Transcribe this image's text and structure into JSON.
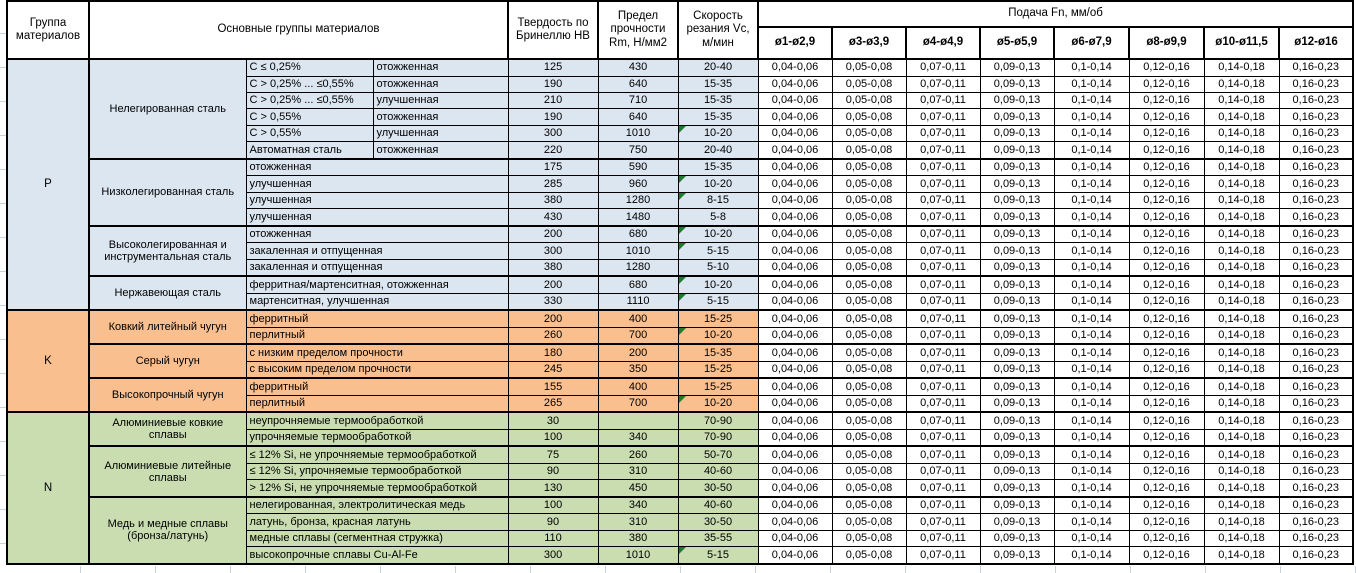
{
  "header": {
    "group": "Группа материалов",
    "main_groups": "Основные группы материалов",
    "hardness": "Твердость по Бринеллю HB",
    "strength": "Предел прочности Rm, Н/мм2",
    "speed": "Скорость резания Vc, м/мин",
    "feed": "Подача Fn, мм/об",
    "diameters": [
      "ø1-ø2,9",
      "ø3-ø3,9",
      "ø4-ø4,9",
      "ø5-ø5,9",
      "ø6-ø7,9",
      "ø8-ø9,9",
      "ø10-ø11,5",
      "ø12-ø16"
    ]
  },
  "feed_values": [
    "0,04-0,06",
    "0,05-0,08",
    "0,07-0,11",
    "0,09-0,13",
    "0,1-0,14",
    "0,12-0,16",
    "0,14-0,18",
    "0,16-0,23"
  ],
  "colors": {
    "group_P": "#DCE6F1",
    "group_K": "#FABF8F",
    "group_N": "#C9DDB1",
    "error_flag": "#1e7a2d",
    "border": "#000000",
    "gridline": "#c9d1de"
  },
  "groups": [
    {
      "code": "P",
      "color": "#DCE6F1",
      "subgroups": [
        {
          "name": "Нелегированная сталь",
          "rows": [
            {
              "detail": "C ≤ 0,25%",
              "state": "отожженная",
              "hb": "125",
              "rm": "430",
              "vc": "20-40",
              "flag": false
            },
            {
              "detail": "C > 0,25% ... ≤0,55%",
              "state": "отожженная",
              "hb": "190",
              "rm": "640",
              "vc": "15-35",
              "flag": false
            },
            {
              "detail": "C > 0,25% ... ≤0,55%",
              "state": "улучшенная",
              "hb": "210",
              "rm": "710",
              "vc": "15-35",
              "flag": false
            },
            {
              "detail": "C > 0,55%",
              "state": "отожженная",
              "hb": "190",
              "rm": "640",
              "vc": "15-35",
              "flag": false
            },
            {
              "detail": "C > 0,55%",
              "state": "улучшенная",
              "hb": "300",
              "rm": "1010",
              "vc": "10-20",
              "flag": true
            },
            {
              "detail": "Автоматная сталь",
              "state": "отожженная",
              "hb": "220",
              "rm": "750",
              "vc": "20-40",
              "flag": false
            }
          ]
        },
        {
          "name": "Низколегированная сталь",
          "rows": [
            {
              "detail": "отожженная",
              "hb": "175",
              "rm": "590",
              "vc": "15-35",
              "flag": false
            },
            {
              "detail": "улучшенная",
              "hb": "285",
              "rm": "960",
              "vc": "10-20",
              "flag": true
            },
            {
              "detail": "улучшенная",
              "hb": "380",
              "rm": "1280",
              "vc": "8-15",
              "flag": true
            },
            {
              "detail": "улучшенная",
              "hb": "430",
              "rm": "1480",
              "vc": "5-8",
              "flag": false
            }
          ]
        },
        {
          "name": "Высоколегированная и инструментальная сталь",
          "rows": [
            {
              "detail": "отожженная",
              "hb": "200",
              "rm": "680",
              "vc": "10-20",
              "flag": true
            },
            {
              "detail": "закаленная и отпущенная",
              "hb": "300",
              "rm": "1010",
              "vc": "5-15",
              "flag": true
            },
            {
              "detail": "закаленная и отпущенная",
              "hb": "380",
              "rm": "1280",
              "vc": "5-10",
              "flag": false
            }
          ]
        },
        {
          "name": "Нержавеющая сталь",
          "rows": [
            {
              "detail": "ферритная/мартенситная, отожженная",
              "hb": "200",
              "rm": "680",
              "vc": "10-20",
              "flag": true
            },
            {
              "detail": "мартенситная, улучшенная",
              "hb": "330",
              "rm": "1110",
              "vc": "5-15",
              "flag": true
            }
          ]
        }
      ]
    },
    {
      "code": "K",
      "color": "#FABF8F",
      "subgroups": [
        {
          "name": "Ковкий литейный чугун",
          "rows": [
            {
              "detail": "ферритный",
              "hb": "200",
              "rm": "400",
              "vc": "15-25",
              "flag": false
            },
            {
              "detail": "перлитный",
              "hb": "260",
              "rm": "700",
              "vc": "10-20",
              "flag": true
            }
          ]
        },
        {
          "name": "Серый чугун",
          "rows": [
            {
              "detail": "с низким пределом прочности",
              "hb": "180",
              "rm": "200",
              "vc": "15-35",
              "flag": false
            },
            {
              "detail": "с высоким пределом прочности",
              "hb": "245",
              "rm": "350",
              "vc": "15-25",
              "flag": false
            }
          ]
        },
        {
          "name": "Высокопрочный чугун",
          "rows": [
            {
              "detail": "ферритный",
              "hb": "155",
              "rm": "400",
              "vc": "15-25",
              "flag": false
            },
            {
              "detail": "перлитный",
              "hb": "265",
              "rm": "700",
              "vc": "10-20",
              "flag": true
            }
          ]
        }
      ]
    },
    {
      "code": "N",
      "color": "#C9DDB1",
      "subgroups": [
        {
          "name": "Алюминиевые ковкие сплавы",
          "rows": [
            {
              "detail": "неупрочняемые термообработкой",
              "hb": "30",
              "rm": "",
              "vc": "70-90",
              "flag": false
            },
            {
              "detail": "упрочняемые термообработкой",
              "hb": "100",
              "rm": "340",
              "vc": "70-90",
              "flag": false
            }
          ]
        },
        {
          "name": "Алюминиевые литейные сплавы",
          "rows": [
            {
              "detail": "≤ 12% Si, не упрочняемые термообработкой",
              "hb": "75",
              "rm": "260",
              "vc": "50-70",
              "flag": false
            },
            {
              "detail": "≤ 12% Si, упрочняемые термообработкой",
              "hb": "90",
              "rm": "310",
              "vc": "40-60",
              "flag": false
            },
            {
              "detail": "> 12% Si, не упрочняемые термообработкой",
              "hb": "130",
              "rm": "450",
              "vc": "30-50",
              "flag": false
            }
          ]
        },
        {
          "name": "Медь и медные сплавы (бронза/латунь)",
          "rows": [
            {
              "detail": "нелегированная, электролитическая медь",
              "hb": "100",
              "rm": "340",
              "vc": "40-60",
              "flag": false
            },
            {
              "detail": "латунь, бронза, красная латунь",
              "hb": "90",
              "rm": "310",
              "vc": "30-50",
              "flag": false
            },
            {
              "detail": "медные сплавы (сегментная стружка)",
              "hb": "110",
              "rm": "380",
              "vc": "35-55",
              "flag": false
            },
            {
              "detail": "высокопрочные сплавы Cu-Al-Fe",
              "hb": "300",
              "rm": "1010",
              "vc": "5-15",
              "flag": true
            }
          ]
        }
      ]
    }
  ]
}
